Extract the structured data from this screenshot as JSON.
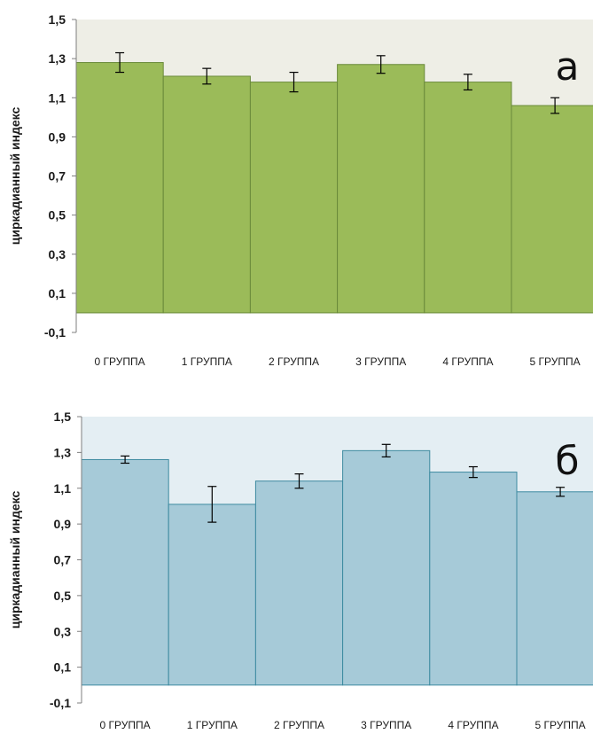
{
  "chart_data": [
    {
      "type": "bar",
      "panel_label": "а",
      "ylabel": "циркадианный индекс",
      "categories": [
        "0 ГРУППА",
        "1 ГРУППА",
        "2 ГРУППА",
        "3 ГРУППА",
        "4 ГРУППА",
        "5 ГРУППА"
      ],
      "values": [
        1.28,
        1.21,
        1.18,
        1.27,
        1.18,
        1.06
      ],
      "errors": [
        0.05,
        0.04,
        0.05,
        0.045,
        0.04,
        0.04
      ],
      "ylim": [
        -0.1,
        1.5
      ],
      "yticks": [
        "1,5",
        "1,3",
        "1,1",
        "0,9",
        "0,7",
        "0,5",
        "0,3",
        "0,1",
        "-0,1"
      ],
      "bar_color": "#9bbb59",
      "bar_stroke": "#6a8a3a",
      "plot_bg": "#eeeee6"
    },
    {
      "type": "bar",
      "panel_label": "б",
      "ylabel": "циркадианный индекс",
      "categories": [
        "0 ГРУППА",
        "1 ГРУППА",
        "2 ГРУППА",
        "3 ГРУППА",
        "4 ГРУППА",
        "5 ГРУППА"
      ],
      "values": [
        1.26,
        1.01,
        1.14,
        1.31,
        1.19,
        1.08
      ],
      "errors": [
        0.02,
        0.1,
        0.04,
        0.035,
        0.03,
        0.025
      ],
      "ylim": [
        -0.1,
        1.5
      ],
      "yticks": [
        "1,5",
        "1,3",
        "1,1",
        "0,9",
        "0,7",
        "0,5",
        "0,3",
        "0,1",
        "-0,1"
      ],
      "bar_color": "#a6cad8",
      "bar_stroke": "#3d8aa0",
      "plot_bg": "#e4eef3"
    }
  ]
}
